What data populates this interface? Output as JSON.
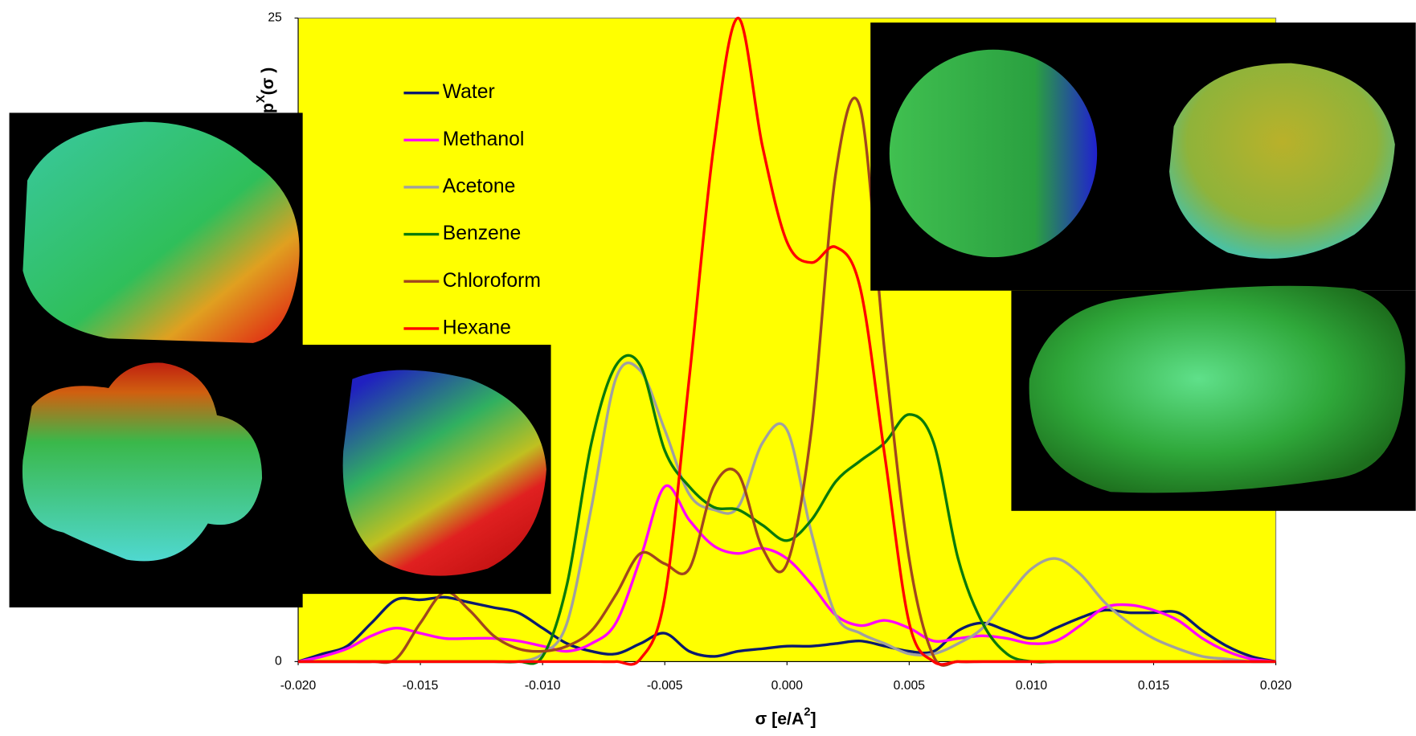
{
  "chart_data": {
    "type": "line",
    "y_label": {
      "base": "p",
      "sup": "X",
      "rest": "(σ )"
    },
    "x_label": {
      "base": "σ  [e/A",
      "sup": "2",
      "rest": "]"
    },
    "x": [
      -0.02,
      -0.019,
      -0.018,
      -0.017,
      -0.016,
      -0.015,
      -0.014,
      -0.013,
      -0.012,
      -0.011,
      -0.01,
      -0.009,
      -0.008,
      -0.007,
      -0.006,
      -0.005,
      -0.004,
      -0.003,
      -0.002,
      -0.001,
      0.0,
      0.001,
      0.002,
      0.003,
      0.004,
      0.005,
      0.006,
      0.007,
      0.008,
      0.009,
      0.01,
      0.011,
      0.012,
      0.013,
      0.014,
      0.015,
      0.016,
      0.017,
      0.018,
      0.019,
      0.02
    ],
    "series": [
      {
        "name": "Water",
        "color": "#0a1a6e",
        "values": [
          0,
          0.3,
          0.6,
          1.5,
          2.4,
          2.4,
          2.5,
          2.3,
          2.1,
          1.9,
          1.3,
          0.7,
          0.4,
          0.3,
          0.7,
          1.1,
          0.4,
          0.2,
          0.4,
          0.5,
          0.6,
          0.6,
          0.7,
          0.8,
          0.6,
          0.4,
          0.4,
          1.2,
          1.5,
          1.2,
          0.9,
          1.3,
          1.7,
          2.0,
          1.9,
          1.9,
          1.9,
          1.2,
          0.6,
          0.2,
          0
        ]
      },
      {
        "name": "Methanol",
        "color": "#ff00ff",
        "values": [
          0,
          0.2,
          0.5,
          1.0,
          1.3,
          1.1,
          0.9,
          0.9,
          0.9,
          0.8,
          0.6,
          0.4,
          0.7,
          1.5,
          4.0,
          6.8,
          5.5,
          4.5,
          4.2,
          4.4,
          4.0,
          3.0,
          1.8,
          1.4,
          1.6,
          1.3,
          0.8,
          0.9,
          1.0,
          0.9,
          0.7,
          0.8,
          1.4,
          2.1,
          2.2,
          2.0,
          1.6,
          0.9,
          0.4,
          0.1,
          0
        ]
      },
      {
        "name": "Acetone",
        "color": "#a0a0a0",
        "values": [
          0,
          0,
          0,
          0,
          0,
          0,
          0,
          0,
          0,
          0,
          0.3,
          1.5,
          6.0,
          11.0,
          11.3,
          9.0,
          6.5,
          5.9,
          6.0,
          8.5,
          9.0,
          5.0,
          1.8,
          1.1,
          0.7,
          0.3,
          0.3,
          0.7,
          1.3,
          2.5,
          3.6,
          4.0,
          3.4,
          2.3,
          1.5,
          0.9,
          0.5,
          0.2,
          0.1,
          0,
          0
        ]
      },
      {
        "name": "Benzene",
        "color": "#0a7a0a",
        "values": [
          0,
          0,
          0,
          0,
          0,
          0,
          0,
          0,
          0,
          0,
          0.2,
          3.0,
          8.5,
          11.5,
          11.5,
          8.2,
          6.8,
          6.0,
          5.9,
          5.3,
          4.7,
          5.5,
          7.0,
          7.8,
          8.5,
          9.6,
          8.5,
          4.0,
          1.5,
          0.3,
          0,
          0,
          0,
          0,
          0,
          0,
          0,
          0,
          0,
          0,
          0
        ]
      },
      {
        "name": "Chloroform",
        "color": "#a0461e",
        "values": [
          0,
          0,
          0,
          0,
          0.1,
          1.5,
          2.7,
          2.0,
          1.0,
          0.5,
          0.4,
          0.6,
          1.2,
          2.6,
          4.2,
          3.8,
          3.6,
          6.8,
          7.3,
          4.4,
          3.8,
          9.0,
          19.0,
          21.5,
          12.0,
          4.0,
          0.2,
          0,
          0,
          0,
          0,
          0,
          0,
          0,
          0,
          0,
          0,
          0,
          0,
          0,
          0
        ]
      },
      {
        "name": "Hexane",
        "color": "#ff0000",
        "values": [
          0,
          0,
          0,
          0,
          0,
          0,
          0,
          0,
          0,
          0,
          0,
          0,
          0,
          0,
          0.1,
          2.5,
          11.0,
          20.0,
          25.0,
          20.0,
          16.3,
          15.5,
          16.1,
          14.5,
          8.0,
          1.5,
          0,
          0,
          0,
          0,
          0,
          0,
          0,
          0,
          0,
          0,
          0,
          0,
          0,
          0,
          0
        ]
      }
    ],
    "xlim": [
      -0.02,
      0.02
    ],
    "xticks": [
      {
        "value": -0.02,
        "label": "-0.020"
      },
      {
        "value": -0.015,
        "label": "-0.015"
      },
      {
        "value": -0.01,
        "label": "-0.010"
      },
      {
        "value": -0.005,
        "label": "-0.005"
      },
      {
        "value": 0.0,
        "label": "0.000"
      },
      {
        "value": 0.005,
        "label": "0.005"
      },
      {
        "value": 0.01,
        "label": "0.010"
      },
      {
        "value": 0.015,
        "label": "0.015"
      },
      {
        "value": 0.02,
        "label": "0.020"
      }
    ],
    "ylim": [
      0,
      25
    ],
    "yticks": [
      0,
      25
    ],
    "background": "#ffff00",
    "legend": "top-left"
  }
}
